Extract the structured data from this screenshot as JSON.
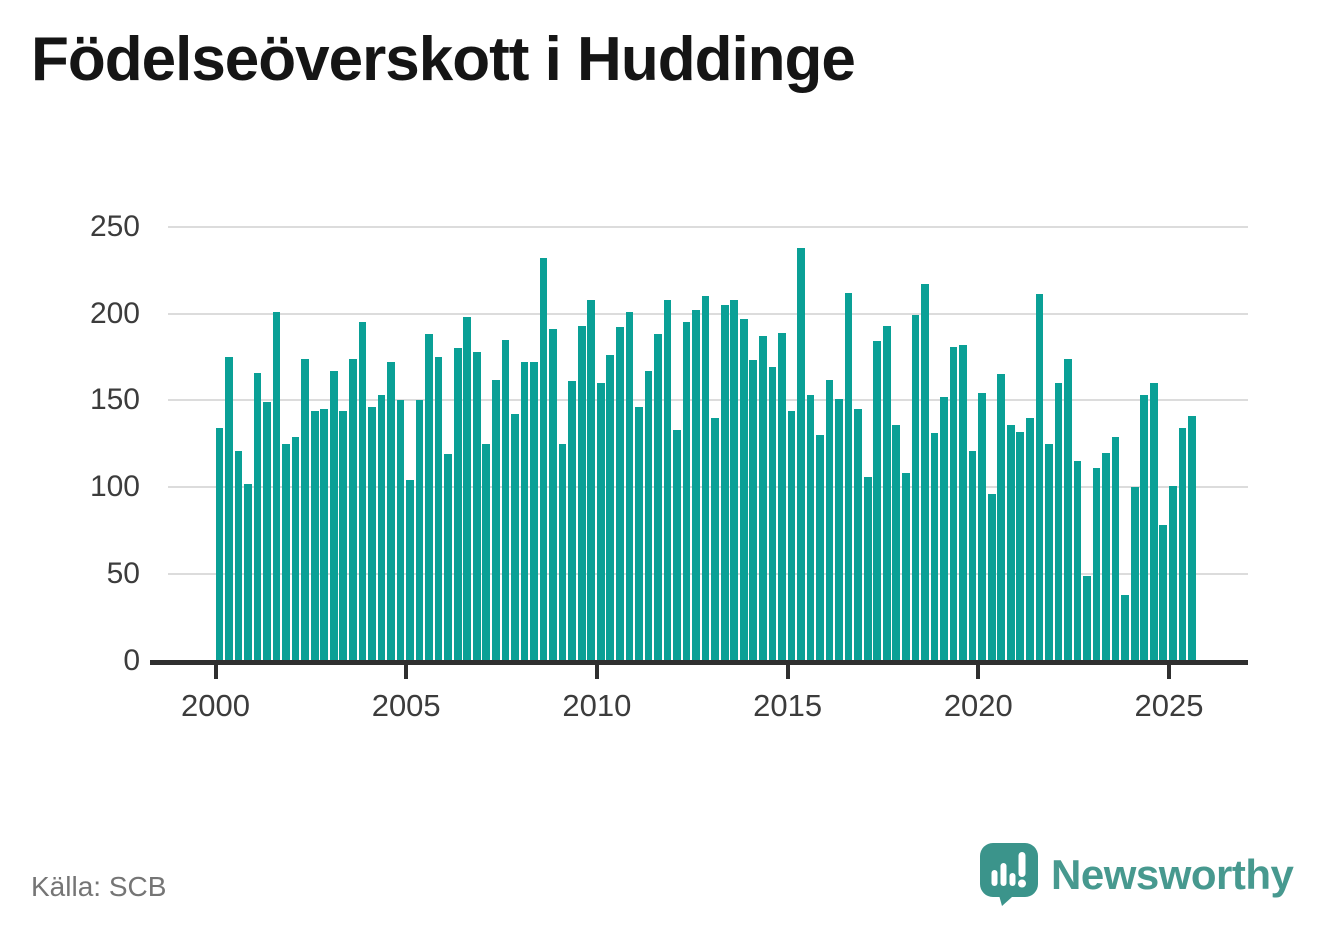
{
  "title": "Födelseöverskott i Huddinge",
  "source": "Källa: SCB",
  "branding": {
    "name": "Newsworthy",
    "icon": "speech-bubble-bar-chart-icon"
  },
  "colors": {
    "bar": "#0aa096",
    "axis": "#2f2f2f",
    "grid": "#dcdcdc",
    "tick_label": "#3c3c3c",
    "title": "#151515",
    "source": "#757575",
    "logo": "#3b948b",
    "wordmark": "#47998f"
  },
  "chart_data": {
    "type": "bar",
    "title": "Födelseöverskott i Huddinge",
    "frequency": "quarterly",
    "first_year": 2000,
    "bars_per_year": 4,
    "x_tick_labels": [
      "2000",
      "2005",
      "2010",
      "2015",
      "2020",
      "2025"
    ],
    "y_ticks": [
      0,
      50,
      100,
      150,
      200,
      250
    ],
    "ylim": [
      0,
      250
    ],
    "grid": "horizontal",
    "legend": "none",
    "values": [
      134,
      175,
      121,
      102,
      166,
      149,
      201,
      125,
      129,
      174,
      144,
      145,
      167,
      144,
      174,
      195,
      146,
      153,
      172,
      150,
      104,
      150,
      188,
      175,
      119,
      180,
      198,
      178,
      125,
      162,
      185,
      142,
      172,
      172,
      232,
      191,
      125,
      161,
      193,
      208,
      160,
      176,
      192,
      201,
      146,
      167,
      188,
      208,
      133,
      195,
      202,
      210,
      140,
      205,
      208,
      197,
      173,
      187,
      169,
      189,
      144,
      238,
      153,
      130,
      162,
      151,
      212,
      145,
      106,
      184,
      193,
      136,
      108,
      199,
      217,
      131,
      152,
      181,
      182,
      121,
      154,
      96,
      165,
      136,
      132,
      140,
      211,
      125,
      160,
      174,
      115,
      49,
      111,
      120,
      129,
      38,
      100,
      153,
      160,
      78,
      101,
      134,
      141
    ]
  }
}
